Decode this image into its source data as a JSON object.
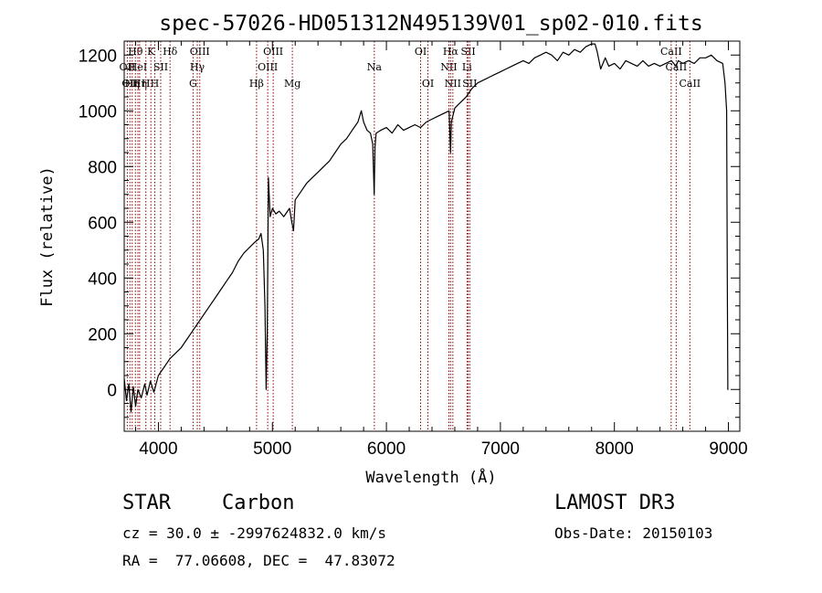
{
  "chart_data": {
    "type": "line",
    "title": "spec-57026-HD051312N495139V01_sp02-010.fits",
    "xlabel": "Wavelength (Å)",
    "ylabel": "Flux (relative)",
    "xlim": [
      3700,
      9100
    ],
    "ylim": [
      -150,
      1250
    ],
    "x_ticks": [
      4000,
      5000,
      6000,
      7000,
      8000,
      9000
    ],
    "y_ticks": [
      0,
      200,
      400,
      600,
      800,
      1000,
      1200
    ],
    "series": [
      {
        "x": [
          3700,
          3720,
          3740,
          3760,
          3780,
          3800,
          3820,
          3850,
          3880,
          3900,
          3930,
          3960,
          4000,
          4050,
          4100,
          4150,
          4200,
          4250,
          4300,
          4350,
          4400,
          4450,
          4500,
          4550,
          4600,
          4650,
          4700,
          4750,
          4800,
          4850,
          4880,
          4900,
          4920,
          4935,
          4945,
          4955,
          4965,
          4980,
          5000,
          5030,
          5060,
          5100,
          5150,
          5170,
          5185,
          5200,
          5250,
          5300,
          5350,
          5400,
          5450,
          5500,
          5550,
          5600,
          5650,
          5700,
          5750,
          5780,
          5800,
          5830,
          5860,
          5880,
          5893,
          5900,
          5910,
          5950,
          6000,
          6050,
          6100,
          6150,
          6200,
          6250,
          6300,
          6350,
          6400,
          6450,
          6500,
          6550,
          6563,
          6570,
          6600,
          6650,
          6700,
          6750,
          6800,
          6850,
          6900,
          6950,
          7000,
          7050,
          7100,
          7150,
          7200,
          7250,
          7300,
          7350,
          7400,
          7450,
          7500,
          7550,
          7600,
          7650,
          7700,
          7750,
          7800,
          7830,
          7850,
          7880,
          7900,
          7920,
          7950,
          8000,
          8050,
          8100,
          8150,
          8200,
          8250,
          8300,
          8350,
          8400,
          8450,
          8500,
          8540,
          8560,
          8600,
          8650,
          8700,
          8750,
          8800,
          8850,
          8900,
          8950,
          8970,
          8985,
          8990,
          8995,
          9000
        ],
        "values": [
          40,
          -40,
          20,
          -80,
          10,
          -60,
          0,
          -30,
          20,
          -20,
          30,
          -10,
          50,
          80,
          110,
          130,
          150,
          180,
          210,
          240,
          270,
          300,
          330,
          360,
          390,
          420,
          460,
          490,
          510,
          530,
          540,
          560,
          500,
          300,
          0,
          200,
          760,
          620,
          650,
          630,
          640,
          620,
          650,
          600,
          570,
          680,
          710,
          740,
          760,
          780,
          800,
          820,
          850,
          880,
          900,
          930,
          960,
          1000,
          960,
          930,
          920,
          880,
          700,
          870,
          920,
          930,
          940,
          920,
          950,
          930,
          940,
          950,
          940,
          960,
          970,
          980,
          990,
          1000,
          850,
          960,
          1010,
          1030,
          1050,
          1080,
          1100,
          1110,
          1120,
          1130,
          1140,
          1150,
          1160,
          1170,
          1180,
          1170,
          1190,
          1200,
          1210,
          1200,
          1180,
          1210,
          1200,
          1220,
          1210,
          1230,
          1240,
          1240,
          1210,
          1150,
          1170,
          1190,
          1160,
          1170,
          1150,
          1180,
          1170,
          1160,
          1180,
          1160,
          1170,
          1160,
          1170,
          1180,
          1160,
          1180,
          1170,
          1180,
          1170,
          1190,
          1190,
          1200,
          1180,
          1170,
          1100,
          1000,
          400,
          0,
          0
        ]
      }
    ],
    "lines": [
      {
        "wl": 3727,
        "label": "OII",
        "row": 1
      },
      {
        "wl": 3750,
        "label": "OII",
        "row": 2
      },
      {
        "wl": 3770,
        "label": "Hη",
        "row": 2
      },
      {
        "wl": 3798,
        "label": "Hθ",
        "row": 0
      },
      {
        "wl": 3820,
        "label": "HeI",
        "row": 1
      },
      {
        "wl": 3835,
        "label": "Hη",
        "row": 2
      },
      {
        "wl": 3890,
        "label": "H",
        "row": 2
      },
      {
        "wl": 3934,
        "label": "K",
        "row": 0
      },
      {
        "wl": 3968,
        "label": "H",
        "row": 2
      },
      {
        "wl": 4020,
        "label": "SII",
        "row": 1
      },
      {
        "wl": 4102,
        "label": "Hδ",
        "row": 0
      },
      {
        "wl": 4304,
        "label": "G",
        "row": 2
      },
      {
        "wl": 4341,
        "label": "Hγ",
        "row": 1
      },
      {
        "wl": 4363,
        "label": "OIII",
        "row": 0
      },
      {
        "wl": 4861,
        "label": "Hβ",
        "row": 2
      },
      {
        "wl": 4959,
        "label": "OIII",
        "row": 1
      },
      {
        "wl": 5007,
        "label": "OIII",
        "row": 0
      },
      {
        "wl": 5175,
        "label": "Mg",
        "row": 2
      },
      {
        "wl": 5894,
        "label": "Na",
        "row": 1
      },
      {
        "wl": 6300,
        "label": "OI",
        "row": 0
      },
      {
        "wl": 6364,
        "label": "OI",
        "row": 2
      },
      {
        "wl": 6548,
        "label": "NII",
        "row": 1
      },
      {
        "wl": 6563,
        "label": "Hα",
        "row": 0
      },
      {
        "wl": 6583,
        "label": "NII",
        "row": 2
      },
      {
        "wl": 6707,
        "label": "Li",
        "row": 1
      },
      {
        "wl": 6717,
        "label": "SII",
        "row": 0
      },
      {
        "wl": 6731,
        "label": "SII",
        "row": 2
      },
      {
        "wl": 8498,
        "label": "CaII",
        "row": 0
      },
      {
        "wl": 8542,
        "label": "CaII",
        "row": 1
      },
      {
        "wl": 8662,
        "label": "CaII",
        "row": 2
      }
    ],
    "line_color": "#8b0000",
    "grid": false
  },
  "info": {
    "class": "STAR",
    "subclass": "Carbon",
    "survey": "LAMOST DR3",
    "cz": "cz = 30.0 ± -2997624832.0 km/s",
    "obs_date": "Obs-Date: 20150103",
    "coords": "RA =  77.06608, DEC =  47.83072"
  }
}
